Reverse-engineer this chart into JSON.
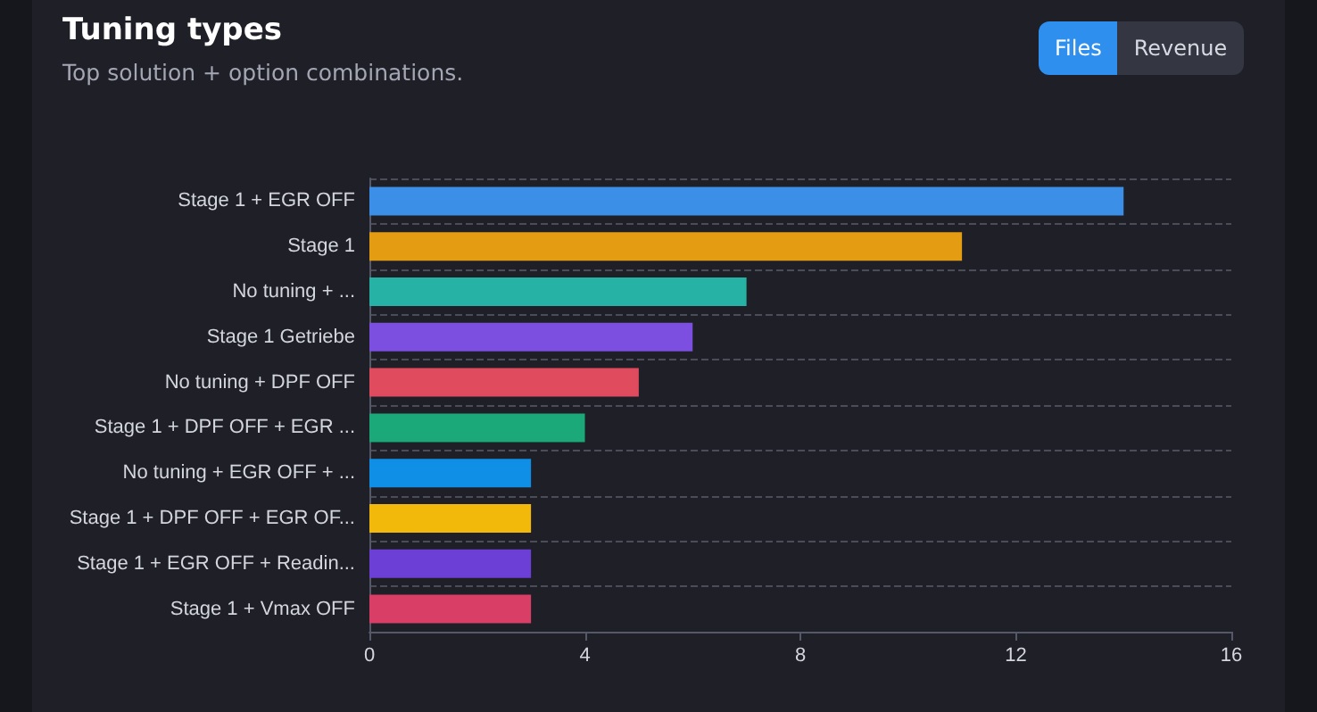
{
  "chart_data": {
    "type": "bar",
    "orientation": "horizontal",
    "title": "Tuning types",
    "subtitle": "Top solution + option combinations.",
    "annotations": [
      "Files",
      "Revenue"
    ],
    "categories": [
      "Stage 1 + EGR OFF",
      "Stage 1",
      "No tuning + ...",
      "Stage 1 Getriebe",
      "No tuning + DPF OFF",
      "Stage 1 + DPF OFF + EGR ...",
      "No tuning + EGR OFF + ...",
      "Stage 1 + DPF OFF + EGR OF...",
      "Stage 1 + EGR OFF + Readin...",
      "Stage 1 + Vmax OFF"
    ],
    "values": [
      14,
      11,
      7,
      6,
      5,
      4,
      3,
      3,
      3,
      3
    ],
    "colors": [
      "#3b8fe6",
      "#e49c12",
      "#26b2a5",
      "#7c4fe0",
      "#e14b5e",
      "#1ca979",
      "#0f8fe6",
      "#f2b90b",
      "#6c3fd6",
      "#d93f66"
    ],
    "xlim": [
      0,
      16
    ],
    "xticks": [
      0,
      4,
      8,
      12,
      16
    ],
    "grid": "y"
  }
}
